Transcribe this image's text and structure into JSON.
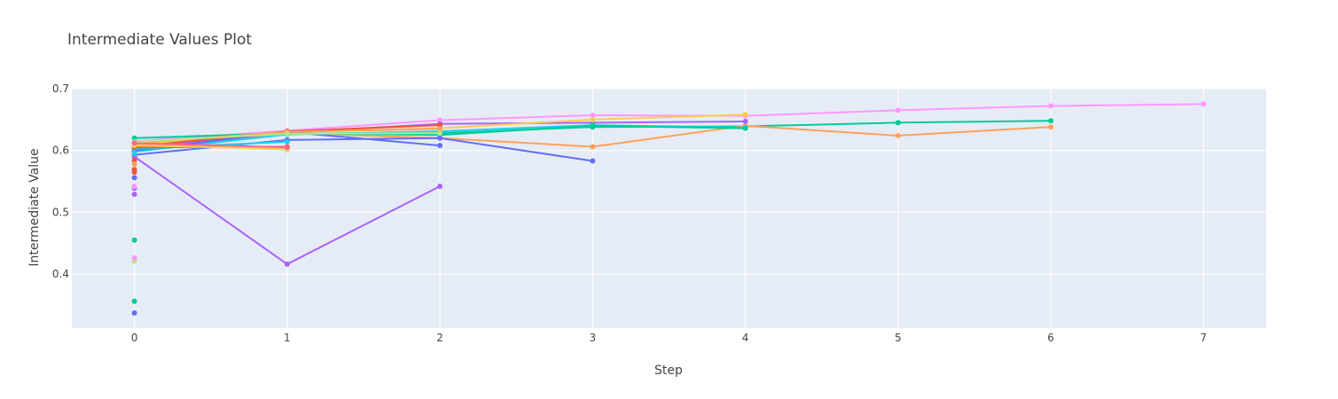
{
  "chart_data": {
    "type": "line",
    "title": "Intermediate Values Plot",
    "xlabel": "Step",
    "ylabel": "Intermediate Value",
    "xlim": [
      -0.41,
      7.41
    ],
    "ylim": [
      0.3126,
      0.7
    ],
    "x_ticks": [
      0,
      1,
      2,
      3,
      4,
      5,
      6,
      7
    ],
    "y_ticks": [
      0.4,
      0.5,
      0.6,
      0.7
    ],
    "grid": true,
    "legend": "none",
    "colors": {
      "plot_background": "#e5ecf6",
      "grid": "#ffffff",
      "text": "#444444"
    },
    "series": [
      {
        "color": "#ff97ff",
        "x": [
          0,
          1,
          2,
          3,
          4,
          5,
          6,
          7
        ],
        "y": [
          0.615,
          0.632,
          0.649,
          0.657,
          0.656,
          0.665,
          0.672,
          0.675
        ]
      },
      {
        "color": "#00cc96",
        "x": [
          0,
          1,
          2,
          3,
          4,
          5,
          6
        ],
        "y": [
          0.601,
          0.627,
          0.628,
          0.638,
          0.639,
          0.645,
          0.648
        ]
      },
      {
        "color": "#ffa15a",
        "x": [
          0,
          1,
          2,
          3,
          4,
          5,
          6
        ],
        "y": [
          0.603,
          0.628,
          0.62,
          0.606,
          0.64,
          0.624,
          0.638
        ]
      },
      {
        "color": "#ab63fa",
        "x": [
          0,
          1,
          2,
          3,
          4
        ],
        "y": [
          0.604,
          0.629,
          0.643,
          0.645,
          0.647
        ]
      },
      {
        "color": "#fecb52",
        "x": [
          0,
          1,
          2,
          3,
          4
        ],
        "y": [
          0.61,
          0.63,
          0.636,
          0.65,
          0.658
        ]
      },
      {
        "color": "#19d3f3",
        "x": [
          0,
          1,
          2,
          3,
          4
        ],
        "y": [
          0.598,
          0.626,
          0.631,
          0.641,
          0.637
        ]
      },
      {
        "color": "#00cc96",
        "x": [
          0,
          1,
          2,
          3,
          4
        ],
        "y": [
          0.62,
          0.628,
          0.625,
          0.64,
          0.636
        ]
      },
      {
        "color": "#636efa",
        "x": [
          0,
          1,
          2,
          3
        ],
        "y": [
          0.593,
          0.617,
          0.62,
          0.583
        ]
      },
      {
        "color": "#ab63fa",
        "x": [
          0,
          1,
          2
        ],
        "y": [
          0.59,
          0.416,
          0.542
        ]
      },
      {
        "color": "#636efa",
        "x": [
          0,
          1,
          2
        ],
        "y": [
          0.6,
          0.63,
          0.608
        ]
      },
      {
        "color": "#ef553b",
        "x": [
          0,
          1,
          2
        ],
        "y": [
          0.606,
          0.631,
          0.641
        ]
      },
      {
        "color": "#ffa15a",
        "x": [
          0,
          1,
          2
        ],
        "y": [
          0.612,
          0.63,
          0.635
        ]
      },
      {
        "color": "#b6e880",
        "x": [
          0,
          1,
          2
        ],
        "y": [
          0.614,
          0.627,
          0.628
        ]
      },
      {
        "color": "#19d3f3",
        "x": [
          0,
          1
        ],
        "y": [
          0.603,
          0.614
        ]
      },
      {
        "color": "#ef553b",
        "x": [
          0,
          1
        ],
        "y": [
          0.605,
          0.606
        ]
      },
      {
        "color": "#b6e880",
        "x": [
          0,
          1
        ],
        "y": [
          0.611,
          0.601
        ]
      },
      {
        "color": "#ffa15a",
        "x": [
          0,
          1
        ],
        "y": [
          0.609,
          0.604
        ]
      },
      {
        "color": "#fecb52",
        "x": [
          0,
          1
        ],
        "y": [
          0.608,
          0.603
        ]
      },
      {
        "color": "#ff6692",
        "x": [
          0,
          1
        ],
        "y": [
          0.612,
          0.605
        ]
      },
      {
        "color": "#636efa",
        "x": [
          0
        ],
        "y": [
          0.337
        ]
      },
      {
        "color": "#00cc96",
        "x": [
          0
        ],
        "y": [
          0.356
        ]
      },
      {
        "color": "#b6e880",
        "x": [
          0
        ],
        "y": [
          0.421
        ]
      },
      {
        "color": "#ff97ff",
        "x": [
          0
        ],
        "y": [
          0.426
        ]
      },
      {
        "color": "#00cc96",
        "x": [
          0
        ],
        "y": [
          0.455
        ]
      },
      {
        "color": "#ab63fa",
        "x": [
          0
        ],
        "y": [
          0.529
        ]
      },
      {
        "color": "#ab63fa",
        "x": [
          0
        ],
        "y": [
          0.539
        ]
      },
      {
        "color": "#ff97ff",
        "x": [
          0
        ],
        "y": [
          0.542
        ]
      },
      {
        "color": "#636efa",
        "x": [
          0
        ],
        "y": [
          0.556
        ]
      },
      {
        "color": "#ef553b",
        "x": [
          0
        ],
        "y": [
          0.565
        ]
      },
      {
        "color": "#ef553b",
        "x": [
          0
        ],
        "y": [
          0.569
        ]
      },
      {
        "color": "#ef553b",
        "x": [
          0
        ],
        "y": [
          0.584
        ]
      },
      {
        "color": "#ffa15a",
        "x": [
          0
        ],
        "y": [
          0.578
        ]
      },
      {
        "color": "#19d3f3",
        "x": [
          0
        ],
        "y": [
          0.595
        ]
      }
    ]
  }
}
